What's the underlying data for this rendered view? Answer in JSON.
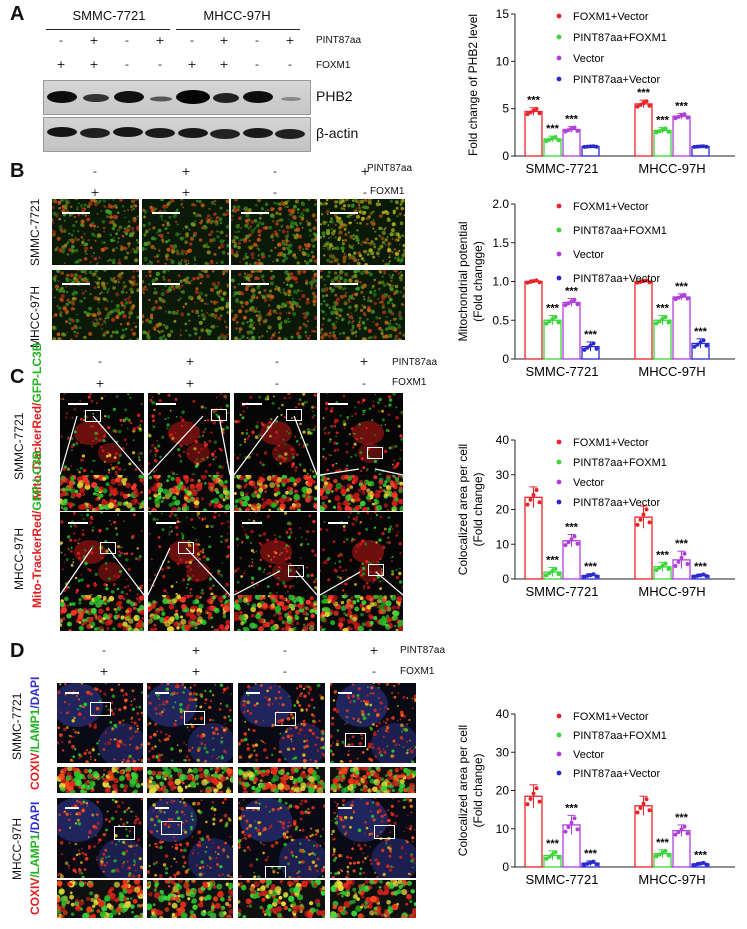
{
  "panel_labels": [
    "A",
    "B",
    "C",
    "D"
  ],
  "conditions": {
    "row1_label": "PINT87aa",
    "row2_label": "FOXM1",
    "pint87aa": [
      "-",
      "+",
      "-",
      "+"
    ],
    "foxm1": [
      "+",
      "+",
      "-",
      "-"
    ],
    "blot_pint87aa": [
      "-",
      "+",
      "-",
      "+",
      "-",
      "+",
      "-",
      "+"
    ],
    "blot_foxm1": [
      "+",
      "+",
      "-",
      "-",
      "+",
      "+",
      "-",
      "-"
    ]
  },
  "cell_lines": {
    "a": "SMMC-7721",
    "b": "MHCC-97H"
  },
  "blot": {
    "protein1": "PHB2",
    "protein2": "β-actin"
  },
  "stain_labels": {
    "c_red": "Mito-TrackerRed/",
    "c_green": "GFP-LC3B",
    "d_red": "COXIV",
    "d_green": "/LAMP1",
    "d_blue": "/DAPI"
  },
  "colors": {
    "foxm1_vector": "#e8242a",
    "pint_foxm1": "#3ad63a",
    "vector": "#b040d8",
    "pint_vector": "#2a2ad0"
  },
  "chart_data": [
    {
      "type": "bar",
      "ylabel": "Fold change of PHB2 level",
      "ylim": [
        0,
        15
      ],
      "yticks": [
        0,
        5,
        10,
        15
      ],
      "categories": [
        "SMMC-7721",
        "MHCC-97H"
      ],
      "series": [
        {
          "name": "FOXM1+Vector",
          "values": [
            4.7,
            5.5
          ],
          "errors": [
            0.4,
            0.4
          ],
          "sig": [
            "***",
            "***"
          ]
        },
        {
          "name": "PINT87aa+FOXM1",
          "values": [
            1.8,
            2.7
          ],
          "errors": [
            0.3,
            0.3
          ],
          "sig": [
            "***",
            "***"
          ]
        },
        {
          "name": "Vector",
          "values": [
            2.8,
            4.2
          ],
          "errors": [
            0.3,
            0.3
          ],
          "sig": [
            "***",
            "***"
          ]
        },
        {
          "name": "PINT87aa+Vector",
          "values": [
            1.0,
            1.0
          ],
          "errors": [
            0.05,
            0.05
          ],
          "sig": [
            "",
            ""
          ]
        }
      ]
    },
    {
      "type": "bar",
      "ylabel": "Mitochondrial potential",
      "ylabel2": "(Fold changge)",
      "ylim": [
        0,
        2.0
      ],
      "yticks": [
        0,
        0.5,
        1.0,
        1.5,
        2.0
      ],
      "categories": [
        "SMMC-7721",
        "MHCC-97H"
      ],
      "series": [
        {
          "name": "FOXM1+Vector",
          "values": [
            1.0,
            1.0
          ],
          "errors": [
            0.02,
            0.02
          ],
          "sig": [
            "",
            ""
          ]
        },
        {
          "name": "PINT87aa+FOXM1",
          "values": [
            0.5,
            0.5
          ],
          "errors": [
            0.06,
            0.06
          ],
          "sig": [
            "***",
            "***"
          ]
        },
        {
          "name": "Vector",
          "values": [
            0.73,
            0.8
          ],
          "errors": [
            0.05,
            0.04
          ],
          "sig": [
            "***",
            "***"
          ]
        },
        {
          "name": "PINT87aa+Vector",
          "values": [
            0.16,
            0.2
          ],
          "errors": [
            0.06,
            0.06
          ],
          "sig": [
            "***",
            "***"
          ]
        }
      ]
    },
    {
      "type": "bar",
      "ylabel": "Colocalized area per cell",
      "ylabel2": "(Fold change)",
      "ylim": [
        0,
        40
      ],
      "yticks": [
        0,
        10,
        20,
        30,
        40
      ],
      "categories": [
        "SMMC-7721",
        "MHCC-97H"
      ],
      "series": [
        {
          "name": "FOXM1+Vector",
          "values": [
            23.5,
            17.8
          ],
          "errors": [
            3.0,
            3.2
          ],
          "sig": [
            "",
            ""
          ]
        },
        {
          "name": "PINT87aa+FOXM1",
          "values": [
            2.0,
            3.5
          ],
          "errors": [
            1.3,
            1.3
          ],
          "sig": [
            "***",
            "***"
          ]
        },
        {
          "name": "Vector",
          "values": [
            11.0,
            5.5
          ],
          "errors": [
            1.8,
            2.5
          ],
          "sig": [
            "***",
            "***"
          ]
        },
        {
          "name": "PINT87aa+Vector",
          "values": [
            1.0,
            1.0
          ],
          "errors": [
            0.5,
            0.4
          ],
          "sig": [
            "***",
            "***"
          ]
        }
      ]
    },
    {
      "type": "bar",
      "ylabel": "Colocalized area per cell",
      "ylabel2": "(Fold change)",
      "ylim": [
        0,
        40
      ],
      "yticks": [
        0,
        10,
        20,
        30,
        40
      ],
      "categories": [
        "SMMC-7721",
        "MHCC-97H"
      ],
      "series": [
        {
          "name": "FOXM1+Vector",
          "values": [
            18.5,
            16.0
          ],
          "errors": [
            3.0,
            2.5
          ],
          "sig": [
            "",
            ""
          ]
        },
        {
          "name": "PINT87aa+FOXM1",
          "values": [
            3.0,
            3.5
          ],
          "errors": [
            1.2,
            1.0
          ],
          "sig": [
            "***",
            "***"
          ]
        },
        {
          "name": "Vector",
          "values": [
            11.0,
            9.5
          ],
          "errors": [
            2.5,
            1.5
          ],
          "sig": [
            "***",
            "***"
          ]
        },
        {
          "name": "PINT87aa+Vector",
          "values": [
            1.0,
            0.8
          ],
          "errors": [
            0.6,
            0.4
          ],
          "sig": [
            "***",
            "***"
          ]
        }
      ]
    }
  ]
}
